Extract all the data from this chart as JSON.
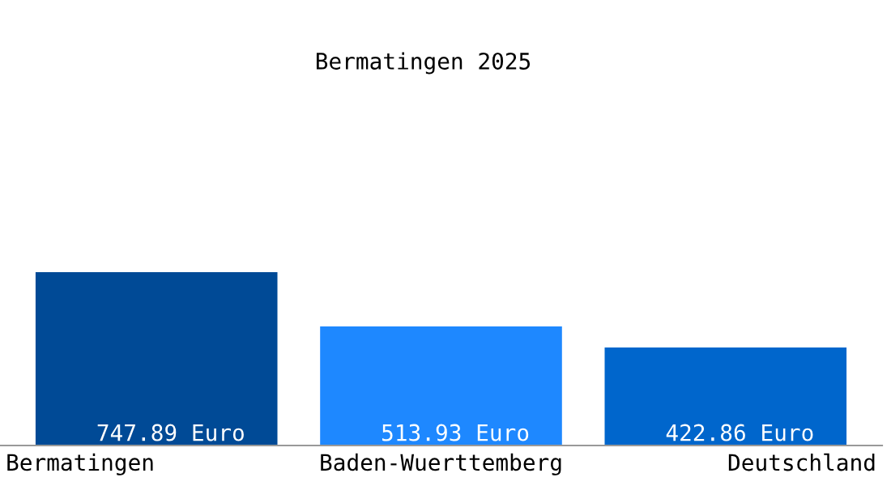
{
  "chart_data": {
    "type": "bar",
    "title": "Bermatingen 2025",
    "categories": [
      "Bermatingen",
      "Baden-Wuerttemberg",
      "Deutschland"
    ],
    "values": [
      747.89,
      513.93,
      422.86
    ],
    "colors": [
      "#004a96",
      "#1e88ff",
      "#0066cc"
    ],
    "value_labels": [
      "747.89 Euro",
      "513.93 Euro",
      "422.86 Euro"
    ],
    "legend": false
  }
}
